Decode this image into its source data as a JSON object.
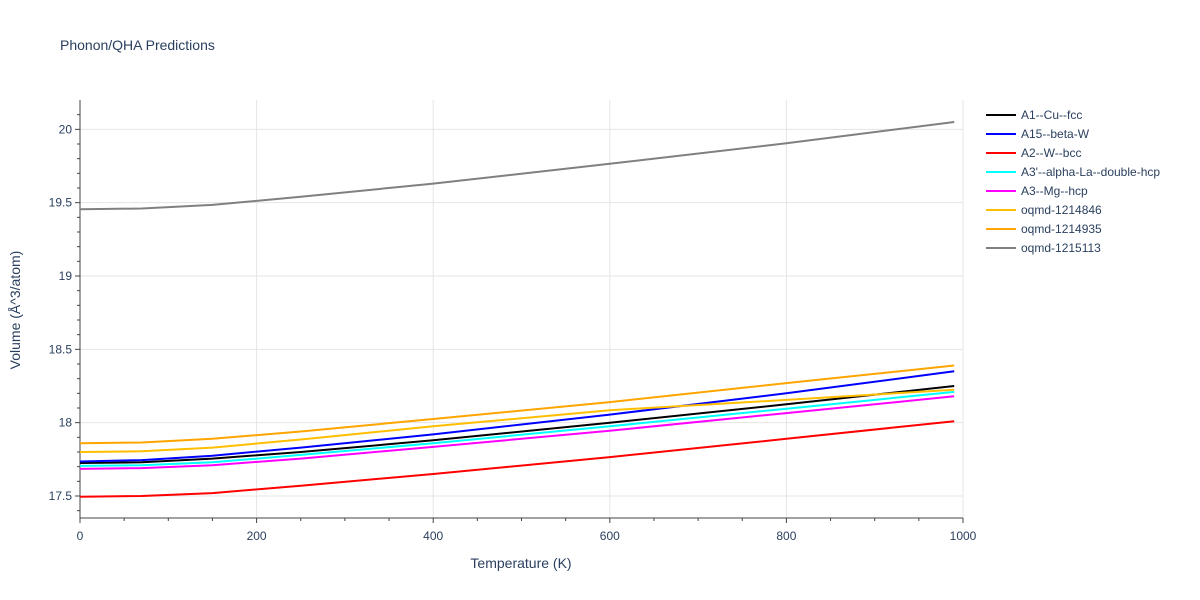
{
  "chart_data": {
    "type": "line",
    "title": "Phonon/QHA Predictions",
    "xlabel": "Temperature (K)",
    "ylabel": "Volume (Å^3/atom)",
    "xlim": [
      0,
      1000
    ],
    "ylim": [
      17.35,
      20.2
    ],
    "x_ticks": [
      0,
      200,
      400,
      600,
      800,
      1000
    ],
    "x_tick_labels": [
      "0",
      "200",
      "400",
      "600",
      "800",
      "1000"
    ],
    "y_ticks": [
      17.5,
      18,
      18.5,
      19,
      19.5,
      20
    ],
    "y_tick_labels": [
      "17.5",
      "18",
      "18.5",
      "19",
      "19.5",
      "20"
    ],
    "grid": true,
    "legend_position": "right",
    "x": [
      0,
      70,
      150,
      250,
      400,
      600,
      800,
      990
    ],
    "series": [
      {
        "name": "A1--Cu--fcc",
        "color": "#000000",
        "values": [
          17.725,
          17.73,
          17.755,
          17.8,
          17.88,
          18.0,
          18.125,
          18.25
        ]
      },
      {
        "name": "A15--beta-W",
        "color": "#0000ff",
        "values": [
          17.735,
          17.745,
          17.775,
          17.83,
          17.92,
          18.055,
          18.2,
          18.35
        ]
      },
      {
        "name": "A2--W--bcc",
        "color": "#ff0000",
        "values": [
          17.495,
          17.5,
          17.52,
          17.57,
          17.65,
          17.765,
          17.89,
          18.01
        ]
      },
      {
        "name": "A3'--alpha-La--double-hcp",
        "color": "#00ffff",
        "values": [
          17.705,
          17.71,
          17.73,
          17.78,
          17.86,
          17.975,
          18.095,
          18.21
        ]
      },
      {
        "name": "A3--Mg--hcp",
        "color": "#ff00ff",
        "values": [
          17.685,
          17.69,
          17.71,
          17.755,
          17.835,
          17.945,
          18.065,
          18.18
        ]
      },
      {
        "name": "oqmd-1214846",
        "color": "#ffbf00",
        "values": [
          17.8,
          17.805,
          17.83,
          17.885,
          17.975,
          18.085,
          18.155,
          18.225
        ]
      },
      {
        "name": "oqmd-1214935",
        "color": "#ffa500",
        "values": [
          17.86,
          17.865,
          17.89,
          17.94,
          18.025,
          18.14,
          18.27,
          18.39
        ]
      },
      {
        "name": "oqmd-1215113",
        "color": "#808080",
        "values": [
          19.455,
          19.46,
          19.485,
          19.54,
          19.63,
          19.765,
          19.905,
          20.05
        ]
      }
    ]
  }
}
